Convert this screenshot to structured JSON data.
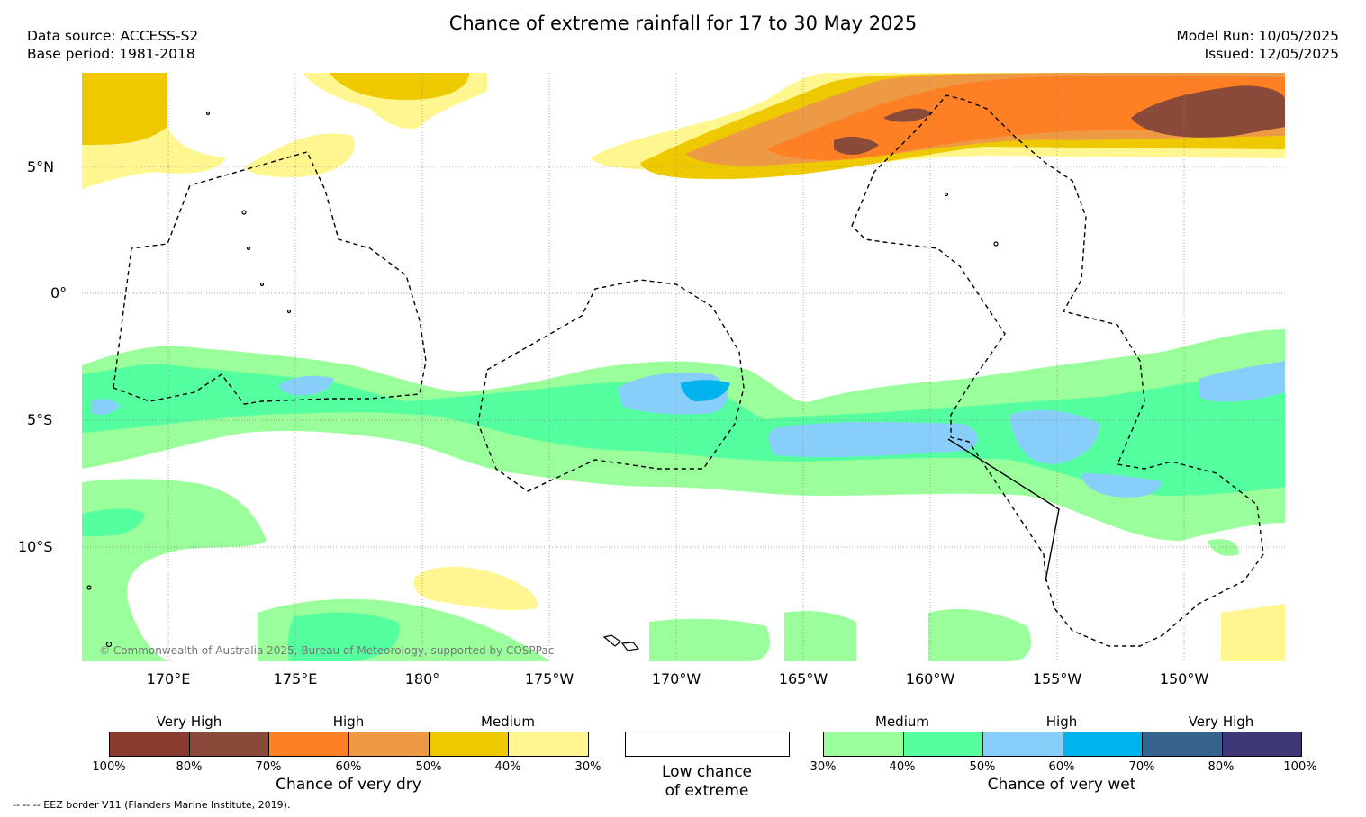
{
  "title": "Chance of extreme rainfall for 17 to 30 May 2025",
  "meta": {
    "data_source": "Data source: ACCESS-S2",
    "base_period": "Base period: 1981-2018",
    "model_run": "Model Run: 10/05/2025",
    "issued": "Issued: 12/05/2025"
  },
  "map": {
    "lat_labels": [
      "5°N",
      "0°",
      "5°S",
      "10°S"
    ],
    "lon_labels": [
      "170°E",
      "175°E",
      "180°",
      "175°W",
      "170°W",
      "165°W",
      "160°W",
      "155°W",
      "150°W"
    ],
    "copyright": "© Commonwealth of Australia 2025, Bureau of Meteorology, supported by COSPPac"
  },
  "legend": {
    "dry": {
      "levels": [
        "Very High",
        "High",
        "Medium"
      ],
      "colors": [
        "#8b3a30",
        "#8a4a3a",
        "#ff7f24",
        "#ee9a45",
        "#eec900",
        "#fff68f"
      ],
      "ticks": [
        "100%",
        "80%",
        "70%",
        "60%",
        "50%",
        "40%",
        "30%"
      ],
      "caption": "Chance of very dry"
    },
    "low": {
      "caption_line1": "Low chance",
      "caption_line2": "of extreme",
      "color": "#ffffff"
    },
    "wet": {
      "levels": [
        "Medium",
        "High",
        "Very High"
      ],
      "colors": [
        "#9aff9a",
        "#54ff9f",
        "#87cefa",
        "#00b2ee",
        "#36648b",
        "#3d3878"
      ],
      "ticks": [
        "30%",
        "40%",
        "50%",
        "60%",
        "70%",
        "80%",
        "100%"
      ],
      "caption": "Chance of very wet"
    }
  },
  "footnote": "-- -- -- EEZ border V11 (Flanders Marine Institute, 2019)."
}
